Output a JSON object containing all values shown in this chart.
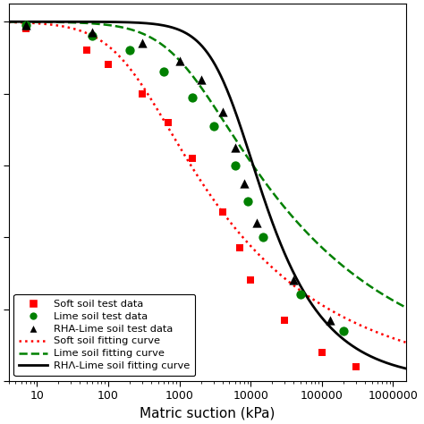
{
  "title": "",
  "xlabel": "Matric suction (kPa)",
  "ylabel": "",
  "background_color": "#ffffff",
  "soft_test_x": [
    7,
    50,
    100,
    300,
    700,
    1500,
    4000,
    7000,
    10000,
    30000,
    100000,
    300000
  ],
  "soft_test_y": [
    0.98,
    0.92,
    0.88,
    0.8,
    0.72,
    0.62,
    0.47,
    0.37,
    0.28,
    0.17,
    0.08,
    0.04
  ],
  "lime_test_x": [
    7,
    60,
    200,
    600,
    1500,
    3000,
    6000,
    9000,
    15000,
    50000,
    200000
  ],
  "lime_test_y": [
    0.99,
    0.96,
    0.92,
    0.86,
    0.79,
    0.71,
    0.6,
    0.5,
    0.4,
    0.24,
    0.14
  ],
  "rha_test_x": [
    7,
    60,
    300,
    1000,
    2000,
    4000,
    6000,
    8000,
    12000,
    40000,
    130000
  ],
  "rha_test_y": [
    0.99,
    0.97,
    0.94,
    0.89,
    0.84,
    0.75,
    0.65,
    0.55,
    0.44,
    0.28,
    0.17
  ],
  "soft_color": "#ff0000",
  "lime_color": "#008000",
  "rha_color": "#000000",
  "curve_x_min": 4,
  "curve_x_max": 1500000,
  "curve_n_points": 600,
  "soft_vg": {
    "ts": 1.0,
    "alpha": 0.005,
    "n": 1.25
  },
  "lime_vg": {
    "ts": 1.0,
    "alpha": 0.0009,
    "n": 1.22
  },
  "rha_vg": {
    "ts": 1.0,
    "alpha": 0.00018,
    "n": 1.6
  },
  "xlim": [
    4,
    1500000
  ],
  "ylim": [
    0,
    1.05
  ]
}
